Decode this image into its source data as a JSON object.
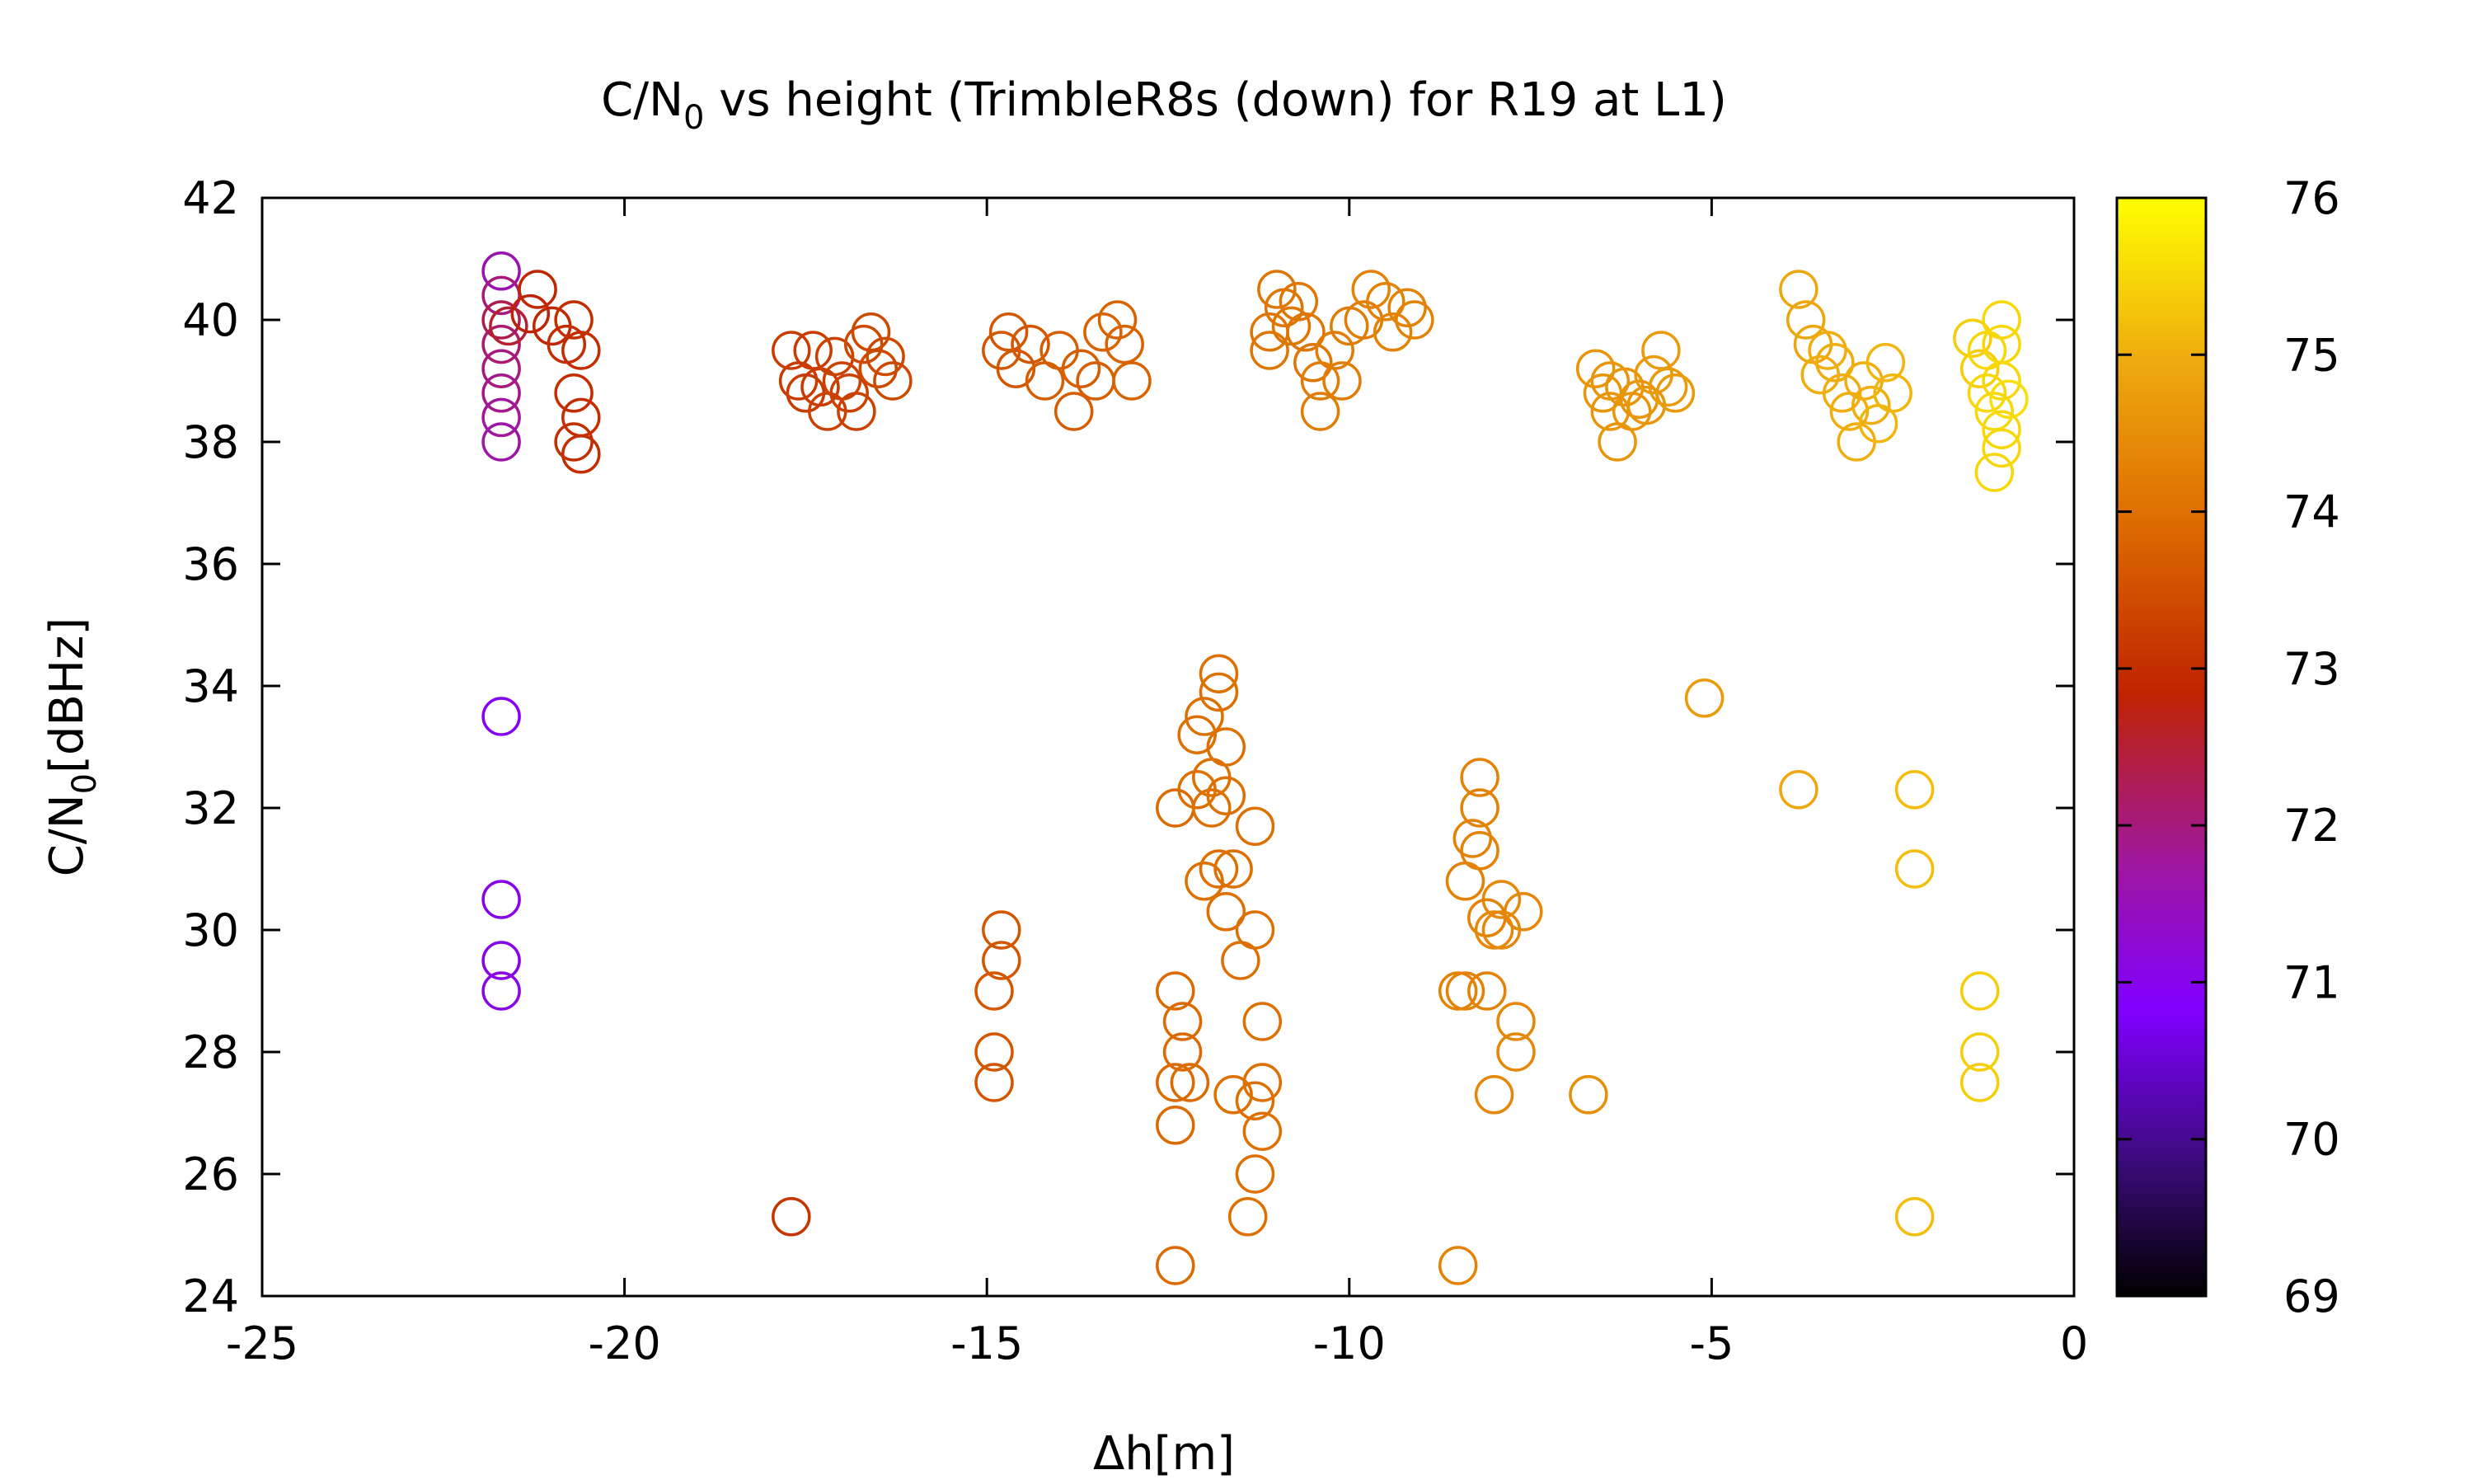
{
  "chart_data": {
    "type": "scatter",
    "title_main": "C/N",
    "title_sub": "0",
    "title_rest": " vs height (TrimbleR8s (down) for R19 at L1)",
    "xlabel": "Δh[m]",
    "ylabel_main": "C/N",
    "ylabel_sub": "0",
    "ylabel_rest": "[dBHz]",
    "xlim": [
      -25,
      0
    ],
    "ylim": [
      24,
      42
    ],
    "xticks": [
      -25,
      -20,
      -15,
      -10,
      -5,
      0
    ],
    "yticks": [
      24,
      26,
      28,
      30,
      32,
      34,
      36,
      38,
      40,
      42
    ],
    "colorbar": {
      "range": [
        69,
        76
      ],
      "ticks": [
        69,
        70,
        71,
        72,
        73,
        74,
        75,
        76
      ],
      "palette": "black-purple-red-orange-yellow"
    },
    "marker": "open-circle",
    "points": [
      {
        "x": -21.7,
        "y": 40.8,
        "c": 71.6
      },
      {
        "x": -21.7,
        "y": 40.4,
        "c": 72.0
      },
      {
        "x": -21.7,
        "y": 40.0,
        "c": 72.3
      },
      {
        "x": -21.7,
        "y": 39.6,
        "c": 72.1
      },
      {
        "x": -21.7,
        "y": 39.2,
        "c": 72.0
      },
      {
        "x": -21.7,
        "y": 38.8,
        "c": 71.9
      },
      {
        "x": -21.7,
        "y": 38.4,
        "c": 71.8
      },
      {
        "x": -21.7,
        "y": 38.0,
        "c": 71.7
      },
      {
        "x": -21.6,
        "y": 39.9,
        "c": 72.5
      },
      {
        "x": -21.3,
        "y": 40.1,
        "c": 72.8
      },
      {
        "x": -21.2,
        "y": 40.5,
        "c": 72.9
      },
      {
        "x": -21.0,
        "y": 39.9,
        "c": 72.9
      },
      {
        "x": -20.8,
        "y": 39.6,
        "c": 73.0
      },
      {
        "x": -20.7,
        "y": 40.0,
        "c": 73.0
      },
      {
        "x": -20.6,
        "y": 39.5,
        "c": 73.0
      },
      {
        "x": -20.7,
        "y": 38.8,
        "c": 73.0
      },
      {
        "x": -20.6,
        "y": 38.4,
        "c": 73.0
      },
      {
        "x": -20.7,
        "y": 38.0,
        "c": 73.0
      },
      {
        "x": -20.6,
        "y": 37.8,
        "c": 73.0
      },
      {
        "x": -21.7,
        "y": 33.5,
        "c": 70.9
      },
      {
        "x": -21.7,
        "y": 30.5,
        "c": 71.0
      },
      {
        "x": -21.7,
        "y": 29.5,
        "c": 71.0
      },
      {
        "x": -21.7,
        "y": 29.0,
        "c": 71.1
      },
      {
        "x": -17.7,
        "y": 39.5,
        "c": 73.2
      },
      {
        "x": -17.6,
        "y": 39.0,
        "c": 73.2
      },
      {
        "x": -17.5,
        "y": 38.8,
        "c": 73.2
      },
      {
        "x": -17.4,
        "y": 39.5,
        "c": 73.2
      },
      {
        "x": -17.3,
        "y": 38.9,
        "c": 73.2
      },
      {
        "x": -17.2,
        "y": 38.5,
        "c": 73.3
      },
      {
        "x": -17.1,
        "y": 39.4,
        "c": 73.3
      },
      {
        "x": -17.0,
        "y": 39.0,
        "c": 73.3
      },
      {
        "x": -16.9,
        "y": 38.8,
        "c": 73.3
      },
      {
        "x": -16.8,
        "y": 38.5,
        "c": 73.3
      },
      {
        "x": -16.7,
        "y": 39.6,
        "c": 73.4
      },
      {
        "x": -16.6,
        "y": 39.8,
        "c": 73.4
      },
      {
        "x": -16.5,
        "y": 39.2,
        "c": 73.4
      },
      {
        "x": -16.4,
        "y": 39.4,
        "c": 73.4
      },
      {
        "x": -16.3,
        "y": 39.0,
        "c": 73.4
      },
      {
        "x": -17.7,
        "y": 25.3,
        "c": 73.1
      },
      {
        "x": -14.8,
        "y": 39.5,
        "c": 73.6
      },
      {
        "x": -14.7,
        "y": 39.8,
        "c": 73.6
      },
      {
        "x": -14.6,
        "y": 39.2,
        "c": 73.6
      },
      {
        "x": -14.4,
        "y": 39.6,
        "c": 73.6
      },
      {
        "x": -14.2,
        "y": 39.0,
        "c": 73.7
      },
      {
        "x": -14.0,
        "y": 39.5,
        "c": 73.7
      },
      {
        "x": -13.8,
        "y": 38.5,
        "c": 73.7
      },
      {
        "x": -13.7,
        "y": 39.2,
        "c": 73.7
      },
      {
        "x": -13.5,
        "y": 39.0,
        "c": 73.7
      },
      {
        "x": -13.4,
        "y": 39.8,
        "c": 73.8
      },
      {
        "x": -13.2,
        "y": 40.0,
        "c": 73.8
      },
      {
        "x": -13.1,
        "y": 39.6,
        "c": 73.8
      },
      {
        "x": -13.0,
        "y": 39.0,
        "c": 73.8
      },
      {
        "x": -14.8,
        "y": 30.0,
        "c": 73.6
      },
      {
        "x": -14.8,
        "y": 29.5,
        "c": 73.6
      },
      {
        "x": -14.9,
        "y": 29.0,
        "c": 73.6
      },
      {
        "x": -14.9,
        "y": 28.0,
        "c": 73.6
      },
      {
        "x": -14.9,
        "y": 27.5,
        "c": 73.6
      },
      {
        "x": -11.8,
        "y": 34.2,
        "c": 74.0
      },
      {
        "x": -11.8,
        "y": 33.9,
        "c": 74.0
      },
      {
        "x": -12.0,
        "y": 33.5,
        "c": 74.0
      },
      {
        "x": -12.1,
        "y": 33.2,
        "c": 74.0
      },
      {
        "x": -11.7,
        "y": 33.0,
        "c": 74.0
      },
      {
        "x": -11.9,
        "y": 32.5,
        "c": 74.0
      },
      {
        "x": -12.1,
        "y": 32.3,
        "c": 74.0
      },
      {
        "x": -11.7,
        "y": 32.2,
        "c": 74.0
      },
      {
        "x": -12.4,
        "y": 32.0,
        "c": 73.9
      },
      {
        "x": -11.9,
        "y": 32.0,
        "c": 74.0
      },
      {
        "x": -11.3,
        "y": 31.7,
        "c": 74.0
      },
      {
        "x": -11.6,
        "y": 31.0,
        "c": 74.0
      },
      {
        "x": -11.8,
        "y": 31.0,
        "c": 74.0
      },
      {
        "x": -12.0,
        "y": 30.8,
        "c": 74.0
      },
      {
        "x": -11.7,
        "y": 30.3,
        "c": 74.0
      },
      {
        "x": -11.3,
        "y": 30.0,
        "c": 74.0
      },
      {
        "x": -11.5,
        "y": 29.5,
        "c": 74.0
      },
      {
        "x": -12.4,
        "y": 29.0,
        "c": 73.9
      },
      {
        "x": -12.3,
        "y": 28.5,
        "c": 73.9
      },
      {
        "x": -11.2,
        "y": 28.5,
        "c": 74.0
      },
      {
        "x": -12.3,
        "y": 28.0,
        "c": 73.9
      },
      {
        "x": -12.4,
        "y": 27.5,
        "c": 73.9
      },
      {
        "x": -12.2,
        "y": 27.5,
        "c": 73.9
      },
      {
        "x": -11.2,
        "y": 27.5,
        "c": 74.0
      },
      {
        "x": -11.6,
        "y": 27.3,
        "c": 74.0
      },
      {
        "x": -11.3,
        "y": 27.2,
        "c": 74.0
      },
      {
        "x": -12.4,
        "y": 26.8,
        "c": 73.9
      },
      {
        "x": -11.2,
        "y": 26.7,
        "c": 74.0
      },
      {
        "x": -11.3,
        "y": 26.0,
        "c": 74.0
      },
      {
        "x": -11.4,
        "y": 25.3,
        "c": 74.0
      },
      {
        "x": -12.4,
        "y": 24.5,
        "c": 73.9
      },
      {
        "x": -11.0,
        "y": 40.5,
        "c": 74.1
      },
      {
        "x": -10.9,
        "y": 40.2,
        "c": 74.1
      },
      {
        "x": -11.1,
        "y": 39.8,
        "c": 74.1
      },
      {
        "x": -10.8,
        "y": 39.9,
        "c": 74.1
      },
      {
        "x": -10.7,
        "y": 40.3,
        "c": 74.1
      },
      {
        "x": -10.6,
        "y": 39.8,
        "c": 74.1
      },
      {
        "x": -10.5,
        "y": 39.3,
        "c": 74.1
      },
      {
        "x": -10.4,
        "y": 39.0,
        "c": 74.2
      },
      {
        "x": -10.4,
        "y": 38.5,
        "c": 74.2
      },
      {
        "x": -10.2,
        "y": 39.5,
        "c": 74.2
      },
      {
        "x": -10.1,
        "y": 39.0,
        "c": 74.2
      },
      {
        "x": -10.0,
        "y": 39.9,
        "c": 74.2
      },
      {
        "x": -9.8,
        "y": 40.0,
        "c": 74.2
      },
      {
        "x": -9.7,
        "y": 40.5,
        "c": 74.3
      },
      {
        "x": -9.5,
        "y": 40.3,
        "c": 74.3
      },
      {
        "x": -9.4,
        "y": 39.8,
        "c": 74.3
      },
      {
        "x": -9.2,
        "y": 40.2,
        "c": 74.3
      },
      {
        "x": -9.1,
        "y": 40.0,
        "c": 74.3
      },
      {
        "x": -11.1,
        "y": 39.5,
        "c": 74.1
      },
      {
        "x": -8.2,
        "y": 32.5,
        "c": 74.3
      },
      {
        "x": -8.2,
        "y": 32.0,
        "c": 74.3
      },
      {
        "x": -8.3,
        "y": 31.5,
        "c": 74.3
      },
      {
        "x": -8.2,
        "y": 31.3,
        "c": 74.3
      },
      {
        "x": -8.4,
        "y": 30.8,
        "c": 74.3
      },
      {
        "x": -7.9,
        "y": 30.5,
        "c": 74.4
      },
      {
        "x": -7.6,
        "y": 30.3,
        "c": 74.4
      },
      {
        "x": -8.1,
        "y": 30.2,
        "c": 74.3
      },
      {
        "x": -8.0,
        "y": 30.0,
        "c": 74.4
      },
      {
        "x": -7.9,
        "y": 30.0,
        "c": 74.4
      },
      {
        "x": -8.5,
        "y": 29.0,
        "c": 74.3
      },
      {
        "x": -8.4,
        "y": 29.0,
        "c": 74.3
      },
      {
        "x": -8.1,
        "y": 29.0,
        "c": 74.3
      },
      {
        "x": -7.7,
        "y": 28.5,
        "c": 74.4
      },
      {
        "x": -7.7,
        "y": 28.0,
        "c": 74.4
      },
      {
        "x": -8.0,
        "y": 27.3,
        "c": 74.4
      },
      {
        "x": -8.5,
        "y": 24.5,
        "c": 74.3
      },
      {
        "x": -6.7,
        "y": 27.3,
        "c": 74.5
      },
      {
        "x": -6.6,
        "y": 39.2,
        "c": 74.6
      },
      {
        "x": -6.5,
        "y": 38.8,
        "c": 74.6
      },
      {
        "x": -6.4,
        "y": 38.5,
        "c": 74.6
      },
      {
        "x": -6.3,
        "y": 38.0,
        "c": 74.6
      },
      {
        "x": -6.2,
        "y": 38.9,
        "c": 74.6
      },
      {
        "x": -6.1,
        "y": 38.5,
        "c": 74.6
      },
      {
        "x": -6.0,
        "y": 38.7,
        "c": 74.6
      },
      {
        "x": -5.9,
        "y": 38.6,
        "c": 74.6
      },
      {
        "x": -5.8,
        "y": 39.1,
        "c": 74.7
      },
      {
        "x": -5.7,
        "y": 39.5,
        "c": 74.7
      },
      {
        "x": -5.6,
        "y": 38.9,
        "c": 74.7
      },
      {
        "x": -5.5,
        "y": 38.8,
        "c": 74.7
      },
      {
        "x": -6.4,
        "y": 39.0,
        "c": 74.6
      },
      {
        "x": -5.1,
        "y": 33.8,
        "c": 74.7
      },
      {
        "x": -3.8,
        "y": 40.5,
        "c": 74.9
      },
      {
        "x": -3.7,
        "y": 40.0,
        "c": 74.9
      },
      {
        "x": -3.6,
        "y": 39.6,
        "c": 74.9
      },
      {
        "x": -3.5,
        "y": 39.1,
        "c": 75.0
      },
      {
        "x": -3.4,
        "y": 39.5,
        "c": 75.0
      },
      {
        "x": -3.3,
        "y": 39.3,
        "c": 75.0
      },
      {
        "x": -3.2,
        "y": 38.8,
        "c": 75.0
      },
      {
        "x": -3.1,
        "y": 38.5,
        "c": 75.0
      },
      {
        "x": -3.0,
        "y": 38.0,
        "c": 75.0
      },
      {
        "x": -2.9,
        "y": 39.0,
        "c": 75.0
      },
      {
        "x": -2.8,
        "y": 38.6,
        "c": 75.0
      },
      {
        "x": -2.7,
        "y": 38.3,
        "c": 75.1
      },
      {
        "x": -2.6,
        "y": 39.3,
        "c": 75.1
      },
      {
        "x": -2.5,
        "y": 38.8,
        "c": 75.1
      },
      {
        "x": -3.8,
        "y": 32.3,
        "c": 74.9
      },
      {
        "x": -2.2,
        "y": 32.3,
        "c": 75.2
      },
      {
        "x": -2.2,
        "y": 31.0,
        "c": 75.2
      },
      {
        "x": -2.2,
        "y": 25.3,
        "c": 75.2
      },
      {
        "x": -1.4,
        "y": 39.7,
        "c": 75.4
      },
      {
        "x": -1.3,
        "y": 39.2,
        "c": 75.4
      },
      {
        "x": -1.2,
        "y": 39.5,
        "c": 75.5
      },
      {
        "x": -1.2,
        "y": 38.8,
        "c": 75.5
      },
      {
        "x": -1.1,
        "y": 38.5,
        "c": 75.5
      },
      {
        "x": -1.0,
        "y": 40.0,
        "c": 75.5
      },
      {
        "x": -1.0,
        "y": 39.6,
        "c": 75.5
      },
      {
        "x": -1.0,
        "y": 39.0,
        "c": 75.5
      },
      {
        "x": -0.9,
        "y": 38.7,
        "c": 75.6
      },
      {
        "x": -1.0,
        "y": 38.2,
        "c": 75.5
      },
      {
        "x": -1.0,
        "y": 37.9,
        "c": 75.5
      },
      {
        "x": -1.1,
        "y": 37.5,
        "c": 75.5
      },
      {
        "x": -1.3,
        "y": 29.0,
        "c": 75.4
      },
      {
        "x": -1.3,
        "y": 28.0,
        "c": 75.4
      },
      {
        "x": -1.3,
        "y": 27.5,
        "c": 75.4
      }
    ]
  }
}
